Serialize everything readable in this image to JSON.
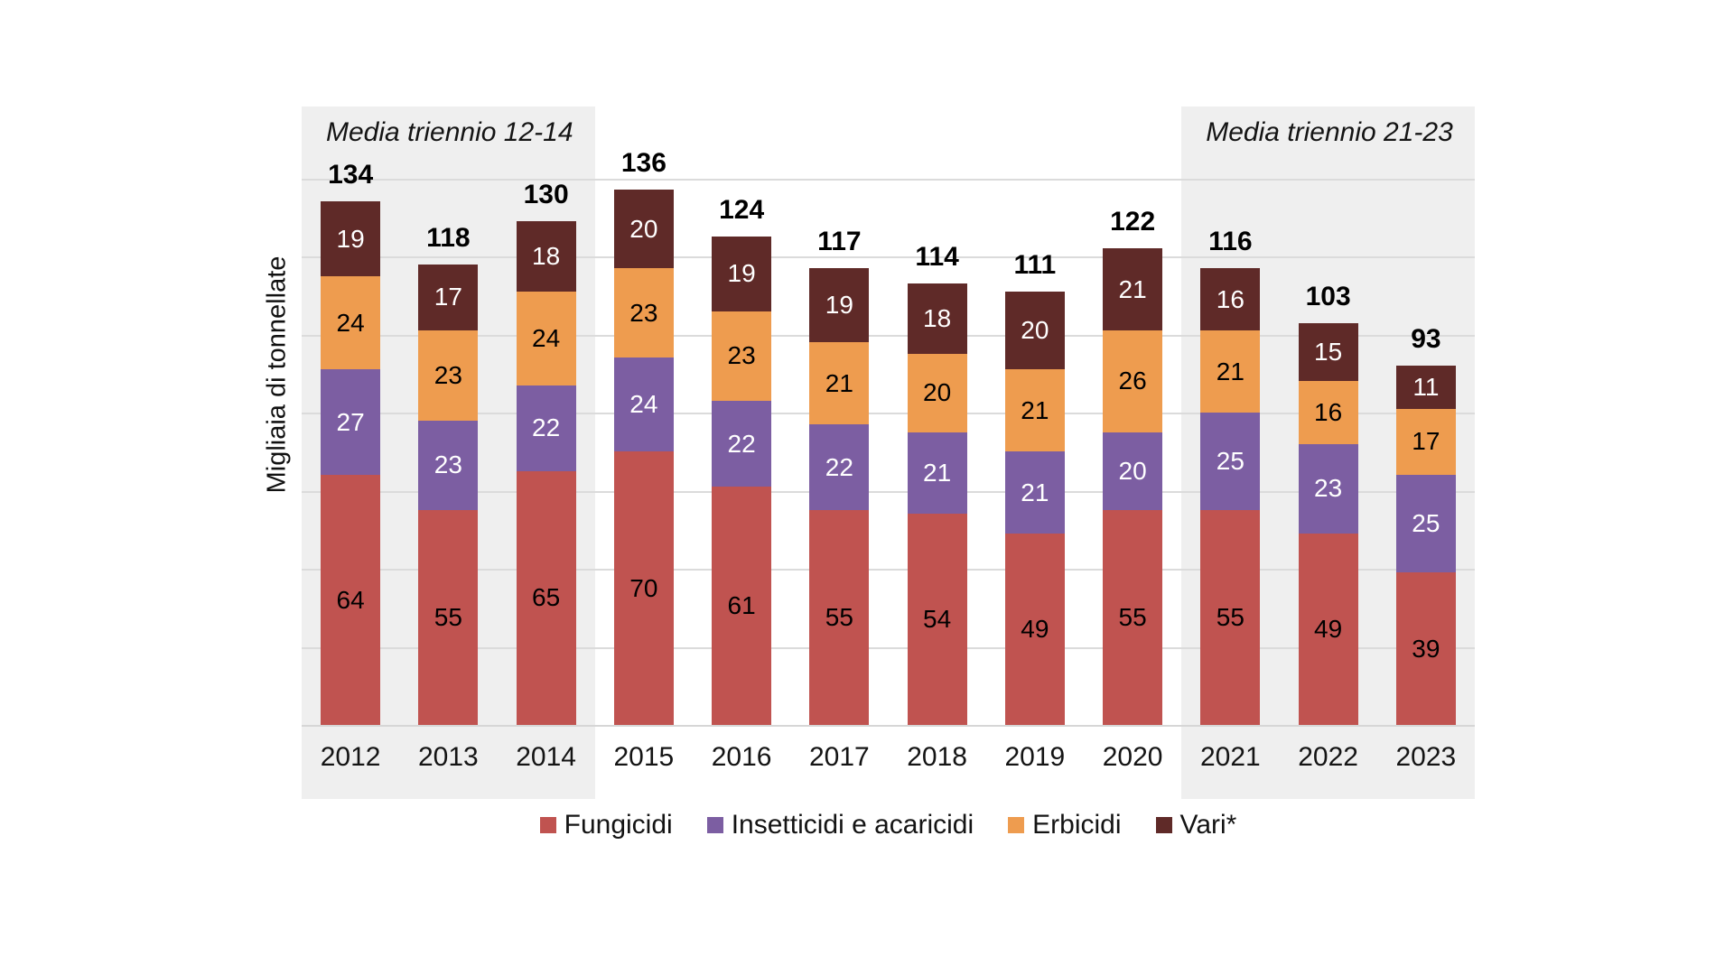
{
  "chart_data": {
    "type": "bar",
    "stacked": true,
    "ylabel": "Migliaia di tonnellate",
    "categories": [
      "2012",
      "2013",
      "2014",
      "2015",
      "2016",
      "2017",
      "2018",
      "2019",
      "2020",
      "2021",
      "2022",
      "2023"
    ],
    "series": [
      {
        "name": "Fungicidi",
        "color": "#C05350",
        "label_color": "#000000",
        "values": [
          64,
          55,
          65,
          70,
          61,
          55,
          54,
          49,
          55,
          55,
          49,
          39
        ]
      },
      {
        "name": "Insetticidi e acaricidi",
        "color": "#7C5EA2",
        "label_color": "#FFFFFF",
        "values": [
          27,
          23,
          22,
          24,
          22,
          22,
          21,
          21,
          20,
          25,
          23,
          25
        ]
      },
      {
        "name": "Erbicidi",
        "color": "#EE9C4F",
        "label_color": "#000000",
        "values": [
          24,
          23,
          24,
          23,
          23,
          21,
          20,
          21,
          26,
          21,
          16,
          17
        ]
      },
      {
        "name": "Vari*",
        "color": "#5F2A28",
        "label_color": "#FFFFFF",
        "values": [
          19,
          17,
          18,
          20,
          19,
          19,
          18,
          20,
          21,
          16,
          15,
          11
        ]
      }
    ],
    "totals": [
      "134",
      "118",
      "130",
      "136",
      "124",
      "117",
      "114",
      "111",
      "122",
      "116",
      "103",
      "93"
    ],
    "annotations": [
      {
        "text": "Media triennio 12-14",
        "span": [
          0,
          2
        ]
      },
      {
        "text": "Media triennio 21-23",
        "span": [
          9,
          11
        ]
      }
    ],
    "ylim": [
      0,
      150
    ],
    "grid": {
      "step": 20,
      "max": 140,
      "color": "#dbdbdb"
    },
    "highlight_color": "#efefef",
    "legend_position": "bottom"
  }
}
